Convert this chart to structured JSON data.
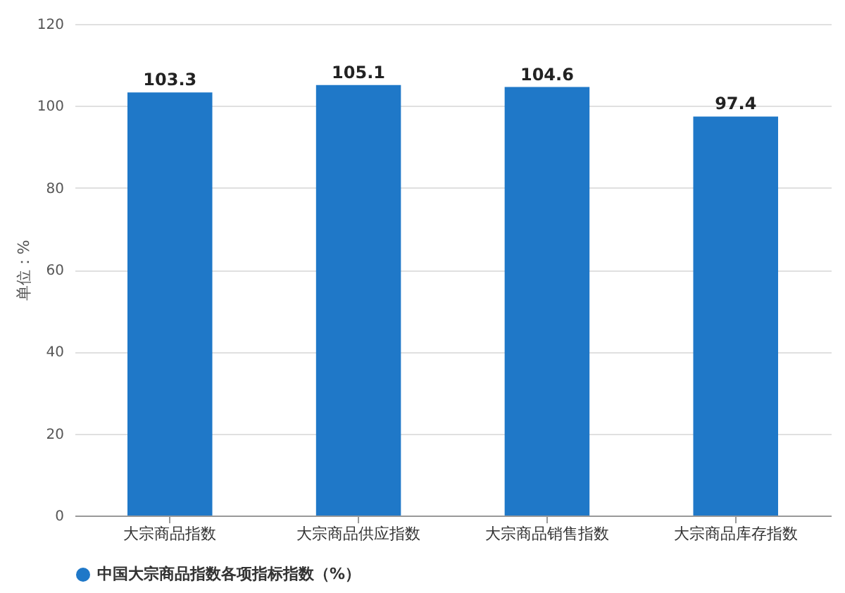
{
  "chart_data": {
    "type": "bar",
    "ylabel": "单位：%",
    "categories": [
      "大宗商品指数",
      "大宗商品供应指数",
      "大宗商品销售指数",
      "大宗商品库存指数"
    ],
    "series": [
      {
        "name": "中国大宗商品指数各项指标指数（%）",
        "color": "#1f78c8",
        "values": [
          103.3,
          105.1,
          104.6,
          97.4
        ]
      }
    ],
    "ylim": [
      0,
      120
    ],
    "yticks": [
      0,
      20,
      40,
      60,
      80,
      100,
      120
    ],
    "grid": "y",
    "legend": "bottom",
    "data_labels": true
  }
}
